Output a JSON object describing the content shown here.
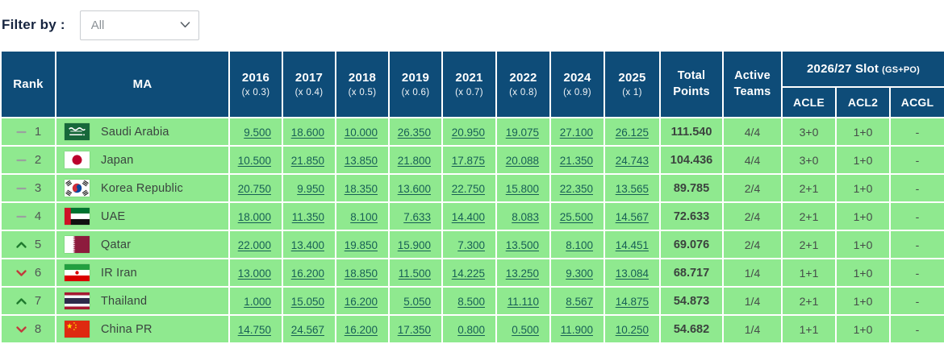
{
  "filter": {
    "label": "Filter by :",
    "value": "All",
    "options": [
      "All"
    ]
  },
  "colors": {
    "header_bg": "#0e4c78",
    "row_bg": "#8fe98f",
    "link": "#175f55",
    "trend_up": "#1f7a2e",
    "trend_down": "#c23b3c",
    "trend_same": "#9aa19f"
  },
  "table": {
    "headers": {
      "rank": "Rank",
      "ma": "MA",
      "total_points": "Total Points",
      "active_teams": "Active Teams",
      "slot_group": "2026/27 Slot",
      "slot_group_note": "(GS+PO)",
      "slot_columns": [
        "ACLE",
        "ACL2",
        "ACGL"
      ]
    },
    "year_columns": [
      {
        "year": "2016",
        "multiplier": "(x 0.3)"
      },
      {
        "year": "2017",
        "multiplier": "(x 0.4)"
      },
      {
        "year": "2018",
        "multiplier": "(x 0.5)"
      },
      {
        "year": "2019",
        "multiplier": "(x 0.6)"
      },
      {
        "year": "2021",
        "multiplier": "(x 0.7)"
      },
      {
        "year": "2022",
        "multiplier": "(x 0.8)"
      },
      {
        "year": "2024",
        "multiplier": "(x 0.9)"
      },
      {
        "year": "2025",
        "multiplier": "(x 1)"
      }
    ],
    "rows": [
      {
        "trend": "same",
        "rank": "1",
        "country": "Saudi Arabia",
        "flag": "sa",
        "points": [
          "9.500",
          "18.600",
          "10.000",
          "26.350",
          "20.950",
          "19.075",
          "27.100",
          "26.125"
        ],
        "total": "111.540",
        "active": "4/4",
        "slots": [
          "3+0",
          "1+0",
          "-"
        ]
      },
      {
        "trend": "same",
        "rank": "2",
        "country": "Japan",
        "flag": "jp",
        "points": [
          "10.500",
          "21.850",
          "13.850",
          "21.800",
          "17.875",
          "20.088",
          "21.350",
          "24.743"
        ],
        "total": "104.436",
        "active": "4/4",
        "slots": [
          "3+0",
          "1+0",
          "-"
        ]
      },
      {
        "trend": "same",
        "rank": "3",
        "country": "Korea Republic",
        "flag": "kr",
        "points": [
          "20.750",
          "9.950",
          "18.350",
          "13.600",
          "22.750",
          "15.800",
          "22.350",
          "13.565"
        ],
        "total": "89.785",
        "active": "2/4",
        "slots": [
          "2+1",
          "1+0",
          "-"
        ]
      },
      {
        "trend": "same",
        "rank": "4",
        "country": "UAE",
        "flag": "ae",
        "points": [
          "18.000",
          "11.350",
          "8.100",
          "7.633",
          "14.400",
          "8.083",
          "25.500",
          "14.567"
        ],
        "total": "72.633",
        "active": "2/4",
        "slots": [
          "2+1",
          "1+0",
          "-"
        ]
      },
      {
        "trend": "up",
        "rank": "5",
        "country": "Qatar",
        "flag": "qa",
        "points": [
          "22.000",
          "13.400",
          "19.850",
          "15.900",
          "7.300",
          "13.500",
          "8.100",
          "14.451"
        ],
        "total": "69.076",
        "active": "2/4",
        "slots": [
          "2+1",
          "1+0",
          "-"
        ]
      },
      {
        "trend": "down",
        "rank": "6",
        "country": "IR Iran",
        "flag": "ir",
        "points": [
          "13.000",
          "16.200",
          "18.850",
          "11.500",
          "14.225",
          "13.250",
          "9.300",
          "13.084"
        ],
        "total": "68.717",
        "active": "1/4",
        "slots": [
          "1+1",
          "1+0",
          "-"
        ]
      },
      {
        "trend": "up",
        "rank": "7",
        "country": "Thailand",
        "flag": "th",
        "points": [
          "1.000",
          "15.050",
          "16.200",
          "5.050",
          "8.500",
          "11.110",
          "8.567",
          "14.875"
        ],
        "total": "54.873",
        "active": "1/4",
        "slots": [
          "2+1",
          "1+0",
          "-"
        ]
      },
      {
        "trend": "down",
        "rank": "8",
        "country": "China PR",
        "flag": "cn",
        "points": [
          "14.750",
          "24.567",
          "16.200",
          "17.350",
          "0.800",
          "0.500",
          "11.900",
          "10.250"
        ],
        "total": "54.682",
        "active": "1/4",
        "slots": [
          "1+1",
          "1+0",
          "-"
        ]
      }
    ]
  }
}
